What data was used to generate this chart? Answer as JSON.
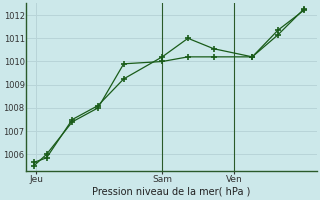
{
  "background_color": "#cce8ea",
  "grid_color": "#b8d4d8",
  "line_color": "#1a5c1a",
  "marker_color": "#1a5c1a",
  "xlabel": "Pression niveau de la mer( hPa )",
  "ylim": [
    1005.3,
    1012.5
  ],
  "yticks": [
    1006,
    1007,
    1008,
    1009,
    1010,
    1011,
    1012
  ],
  "series1_x": [
    0,
    0.5,
    1.5,
    2.5,
    3.5,
    5.0,
    6.0,
    7.0,
    8.5,
    9.5,
    10.5
  ],
  "series1_y": [
    1005.65,
    1005.85,
    1007.5,
    1008.1,
    1009.25,
    1010.2,
    1011.0,
    1010.55,
    1010.2,
    1011.35,
    1012.2
  ],
  "series2_x": [
    0,
    0.5,
    1.5,
    2.5,
    3.5,
    5.0,
    6.0,
    7.0,
    8.5,
    9.5,
    10.5
  ],
  "series2_y": [
    1005.5,
    1006.0,
    1007.4,
    1008.0,
    1009.9,
    1010.0,
    1010.2,
    1010.2,
    1010.2,
    1011.15,
    1012.25
  ],
  "vline_x": [
    5.0,
    7.8
  ],
  "xtick_positions": [
    0.1,
    5.0,
    7.8
  ],
  "xtick_labels": [
    "Jeu",
    "Sam",
    "Ven"
  ]
}
